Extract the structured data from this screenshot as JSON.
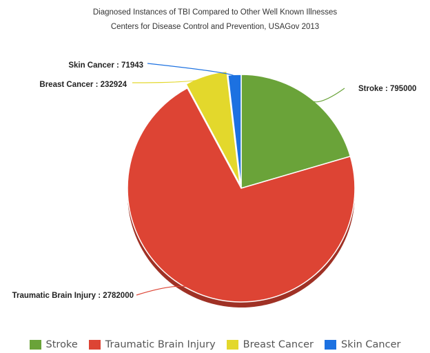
{
  "chart_data": {
    "type": "pie",
    "title": "Diagnosed Instances of TBI Compared to Other Well Known Illnesses",
    "subtitle": "Centers for Disease Control and Prevention, USAGov 2013",
    "slices": [
      {
        "name": "Stroke",
        "value": 795000,
        "color": "#6aa339",
        "label": "Stroke : 795000"
      },
      {
        "name": "Traumatic Brain Injury",
        "value": 2782000,
        "color": "#dd4434",
        "label": "Traumatic Brain Injury : 2782000"
      },
      {
        "name": "Breast Cancer",
        "value": 232924,
        "color": "#e3d82c",
        "label": "Breast Cancer : 232924"
      },
      {
        "name": "Skin Cancer",
        "value": 71943,
        "color": "#1c71e1",
        "label": "Skin Cancer : 71943"
      }
    ],
    "legend_position": "bottom"
  }
}
